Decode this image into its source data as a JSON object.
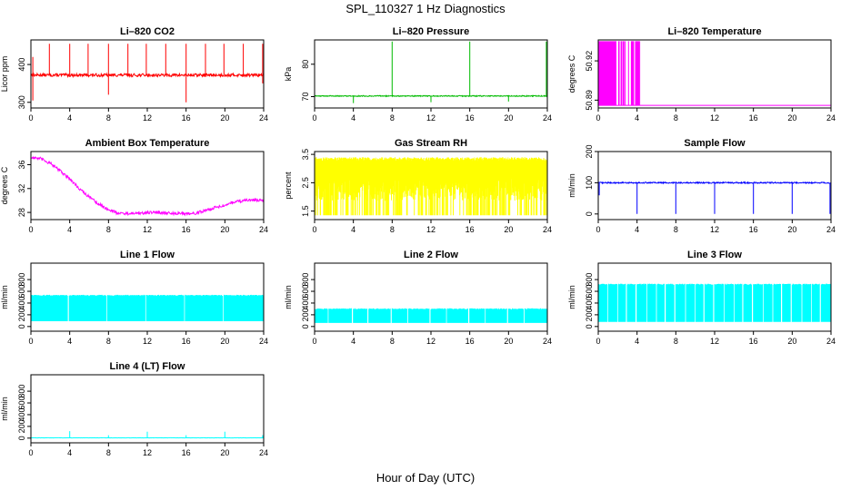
{
  "figure": {
    "title": "SPL_110327  1 Hz Diagnostics",
    "xlabel": "Hour of Day (UTC)"
  },
  "chart_data": [
    {
      "type": "line",
      "title": "Li–820 CO2",
      "ylabel": "Licor ppm",
      "color": "#ff0000",
      "xlim": [
        0,
        24
      ],
      "xticks": [
        0,
        4,
        8,
        12,
        16,
        20,
        24
      ],
      "ylim": [
        285,
        465
      ],
      "yticks": [
        300,
        400
      ],
      "profile": "spiky",
      "base": 372,
      "noise": 4,
      "spikes_up": [
        [
          0.2,
          420
        ],
        [
          1.9,
          455
        ],
        [
          4.0,
          455
        ],
        [
          5.9,
          455
        ],
        [
          8.0,
          455
        ],
        [
          10.0,
          455
        ],
        [
          11.9,
          455
        ],
        [
          13.9,
          455
        ],
        [
          16.0,
          455
        ],
        [
          18.0,
          455
        ],
        [
          19.9,
          455
        ],
        [
          21.9,
          455
        ],
        [
          23.9,
          455
        ]
      ],
      "spikes_down": [
        [
          0.2,
          305
        ],
        [
          8.0,
          320
        ],
        [
          16.0,
          300
        ],
        [
          23.9,
          350
        ]
      ]
    },
    {
      "type": "line",
      "title": "Li–820 Pressure",
      "ylabel": "kPa",
      "color": "#00bb00",
      "xlim": [
        0,
        24
      ],
      "xticks": [
        0,
        4,
        8,
        12,
        16,
        20,
        24
      ],
      "ylim": [
        66.5,
        87.5
      ],
      "yticks": [
        70,
        80
      ],
      "profile": "spiky",
      "base": 70.2,
      "noise": 0.15,
      "spikes_up": [
        [
          0.0,
          83.5
        ],
        [
          8.0,
          87
        ],
        [
          16.0,
          87
        ],
        [
          23.9,
          87
        ]
      ],
      "spikes_down": [
        [
          4.0,
          68
        ],
        [
          12.0,
          68.3
        ],
        [
          20.0,
          68.5
        ]
      ]
    },
    {
      "type": "line",
      "title": "Li–820 Temperature",
      "ylabel": "degrees C",
      "color": "#ff00ff",
      "xlim": [
        0,
        24
      ],
      "xticks": [
        0,
        4,
        8,
        12,
        16,
        20,
        24
      ],
      "ylim": [
        50.884,
        50.936
      ],
      "yticks": [
        50.89,
        50.92
      ],
      "profile": "digital",
      "low": 50.886,
      "high": 50.935,
      "dense_until": 1.7,
      "sparse_until": 4.6
    },
    {
      "type": "line",
      "title": "Ambient Box Temperature",
      "ylabel": "degrees C",
      "color": "#ff00ff",
      "xlim": [
        0,
        24
      ],
      "xticks": [
        0,
        4,
        8,
        12,
        16,
        20,
        24
      ],
      "ylim": [
        26.8,
        38.2
      ],
      "yticks": [
        28,
        32,
        36
      ],
      "profile": "smooth",
      "noise": 0.25,
      "x": [
        0,
        1,
        2,
        3,
        4,
        5,
        6,
        7,
        8,
        9,
        10,
        11,
        12,
        13,
        14,
        15,
        16,
        17,
        18,
        19,
        20,
        21,
        22,
        23,
        24
      ],
      "y": [
        37.2,
        37.0,
        36.2,
        35.0,
        33.6,
        32.0,
        30.6,
        29.4,
        28.5,
        27.9,
        27.8,
        27.8,
        28.0,
        28.0,
        27.9,
        27.8,
        27.8,
        27.9,
        28.3,
        28.8,
        29.3,
        29.7,
        30.0,
        30.1,
        30.0
      ]
    },
    {
      "type": "line",
      "title": "Gas Stream RH",
      "ylabel": "percent",
      "color": "#ffff00",
      "xlim": [
        0,
        24
      ],
      "xticks": [
        0,
        4,
        8,
        12,
        16,
        20,
        24
      ],
      "ylim": [
        1.2,
        3.6
      ],
      "yticks": [
        1.5,
        2.5,
        3.5
      ],
      "profile": "band",
      "low": 1.35,
      "high": 3.4,
      "deep_rate": 0.25
    },
    {
      "type": "line",
      "title": "Sample Flow",
      "ylabel": "ml/min",
      "color": "#0000ff",
      "xlim": [
        0,
        24
      ],
      "xticks": [
        0,
        4,
        8,
        12,
        16,
        20,
        24
      ],
      "ylim": [
        -18,
        200
      ],
      "yticks": [
        0,
        100,
        200
      ],
      "profile": "spiky",
      "base": 100,
      "noise": 2,
      "spikes_up": [],
      "spikes_down": [
        [
          0.1,
          60
        ],
        [
          4.0,
          0
        ],
        [
          8.0,
          0
        ],
        [
          12.0,
          0
        ],
        [
          16.0,
          0
        ],
        [
          20.0,
          0
        ],
        [
          23.9,
          0
        ]
      ]
    },
    {
      "type": "line",
      "title": "Line 1 Flow",
      "ylabel": "ml/min",
      "color": "#00ffff",
      "xlim": [
        0,
        24
      ],
      "xticks": [
        0,
        4,
        8,
        12,
        16,
        20,
        24
      ],
      "ylim": [
        -80,
        1080
      ],
      "yticks": [
        0,
        200,
        400,
        600,
        800
      ],
      "profile": "bandgaps",
      "low": 90,
      "high": 530,
      "gaps": [
        3.85,
        7.85,
        11.85,
        15.85,
        19.85
      ]
    },
    {
      "type": "line",
      "title": "Line 2 Flow",
      "ylabel": "ml/min",
      "color": "#00ffff",
      "xlim": [
        0,
        24
      ],
      "xticks": [
        0,
        4,
        8,
        12,
        16,
        20,
        24
      ],
      "ylim": [
        -80,
        1080
      ],
      "yticks": [
        0,
        200,
        400,
        600,
        800
      ],
      "profile": "bandgaps",
      "low": 60,
      "high": 300,
      "gaps": [
        1.4,
        3.9,
        5.5,
        7.9,
        9.6,
        11.9,
        13.6,
        15.9,
        17.6,
        19.9,
        21.6
      ]
    },
    {
      "type": "line",
      "title": "Line 3 Flow",
      "ylabel": "ml/min",
      "color": "#00ffff",
      "xlim": [
        0,
        24
      ],
      "xticks": [
        0,
        4,
        8,
        12,
        16,
        20,
        24
      ],
      "ylim": [
        -80,
        1080
      ],
      "yticks": [
        0,
        200,
        400,
        600,
        800
      ],
      "profile": "bandgaps",
      "low": 80,
      "high": 720,
      "gaps": [
        1.0,
        2.0,
        2.9,
        3.9,
        5.0,
        6.0,
        6.9,
        7.9,
        9.0,
        10.0,
        10.9,
        11.9,
        13.0,
        14.0,
        14.9,
        15.9,
        17.0,
        18.0,
        18.9,
        19.9,
        21.0,
        22.0,
        22.9
      ]
    },
    {
      "type": "line",
      "title": "Line 4 (LT) Flow",
      "ylabel": "ml/min",
      "color": "#00ffff",
      "xlim": [
        0,
        24
      ],
      "xticks": [
        0,
        4,
        8,
        12,
        16,
        20,
        24
      ],
      "ylim": [
        -80,
        1080
      ],
      "yticks": [
        0,
        200,
        400,
        600,
        800
      ],
      "profile": "spiky",
      "base": 5,
      "noise": 2,
      "spikes_up": [
        [
          4.0,
          120
        ],
        [
          8.0,
          50
        ],
        [
          12.0,
          110
        ],
        [
          16.0,
          50
        ],
        [
          20.0,
          110
        ],
        [
          23.9,
          50
        ]
      ],
      "spikes_down": []
    }
  ]
}
